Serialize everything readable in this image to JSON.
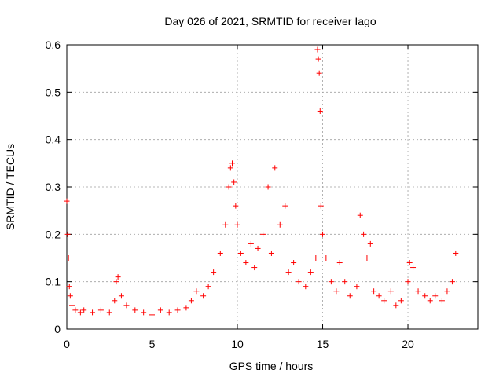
{
  "chart_data": {
    "type": "scatter",
    "title": "Day 026 of 2021, SRMTID for receiver Iago",
    "xlabel": "GPS time / hours",
    "ylabel": "SRMTID / TECUs",
    "xlim": [
      0,
      24.1
    ],
    "ylim": [
      0,
      0.6
    ],
    "x_ticks": [
      0,
      5,
      10,
      15,
      20
    ],
    "x_tick_labels": [
      "0",
      "5",
      "10",
      "15",
      "20"
    ],
    "y_ticks": [
      0,
      0.1,
      0.2,
      0.3,
      0.4,
      0.5,
      0.6
    ],
    "y_tick_labels": [
      "0",
      "0.1",
      "0.2",
      "0.3",
      "0.4",
      "0.5",
      "0.6"
    ],
    "grid": true,
    "marker": "+",
    "marker_color": "#ff0000",
    "series": [
      {
        "name": "SRMTID",
        "x": [
          0.0,
          0.05,
          0.1,
          0.15,
          0.2,
          0.3,
          0.5,
          0.8,
          1.0,
          1.5,
          2.0,
          2.5,
          2.8,
          2.9,
          3.0,
          3.2,
          3.5,
          4.0,
          4.5,
          5.0,
          5.5,
          6.0,
          6.5,
          7.0,
          7.3,
          7.6,
          8.0,
          8.3,
          8.6,
          9.0,
          9.3,
          9.5,
          9.6,
          9.7,
          9.8,
          9.9,
          10.0,
          10.2,
          10.5,
          10.8,
          11.0,
          11.2,
          11.5,
          11.8,
          12.0,
          12.2,
          12.5,
          12.8,
          13.0,
          13.3,
          13.6,
          14.0,
          14.3,
          14.6,
          14.7,
          14.75,
          14.8,
          14.85,
          14.9,
          15.0,
          15.2,
          15.5,
          15.8,
          16.0,
          16.3,
          16.6,
          17.0,
          17.2,
          17.4,
          17.6,
          17.8,
          18.0,
          18.3,
          18.6,
          19.0,
          19.3,
          19.6,
          20.0,
          20.1,
          20.3,
          20.6,
          21.0,
          21.3,
          21.6,
          22.0,
          22.3,
          22.6,
          22.8
        ],
        "y": [
          0.27,
          0.2,
          0.15,
          0.09,
          0.07,
          0.05,
          0.04,
          0.035,
          0.04,
          0.035,
          0.04,
          0.035,
          0.06,
          0.1,
          0.11,
          0.07,
          0.05,
          0.04,
          0.035,
          0.03,
          0.04,
          0.035,
          0.04,
          0.045,
          0.06,
          0.08,
          0.07,
          0.09,
          0.12,
          0.16,
          0.22,
          0.3,
          0.34,
          0.35,
          0.31,
          0.26,
          0.22,
          0.16,
          0.14,
          0.18,
          0.13,
          0.17,
          0.2,
          0.3,
          0.16,
          0.34,
          0.22,
          0.26,
          0.12,
          0.14,
          0.1,
          0.09,
          0.12,
          0.15,
          0.59,
          0.57,
          0.54,
          0.46,
          0.26,
          0.2,
          0.15,
          0.1,
          0.08,
          0.14,
          0.1,
          0.07,
          0.09,
          0.24,
          0.2,
          0.15,
          0.18,
          0.08,
          0.07,
          0.06,
          0.08,
          0.05,
          0.06,
          0.1,
          0.14,
          0.13,
          0.08,
          0.07,
          0.06,
          0.07,
          0.06,
          0.08,
          0.1,
          0.16
        ]
      }
    ]
  }
}
